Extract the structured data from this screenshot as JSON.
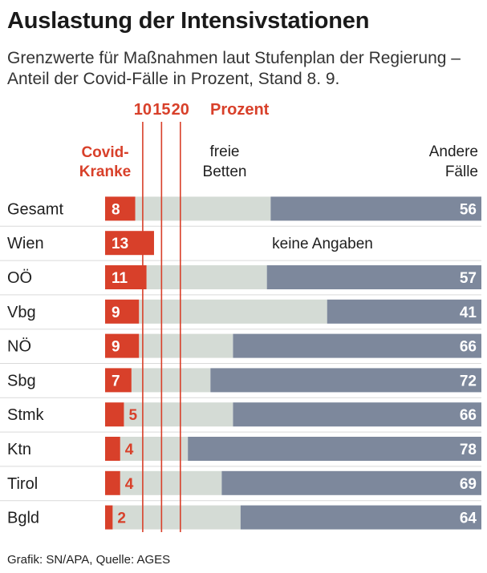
{
  "title": "Auslastung der Intensivstationen",
  "subtitle": "Grenzwerte für Maßnahmen laut Stufenplan der Regierung – Anteil der Covid-Fälle in Prozent, Stand 8. 9.",
  "footer": "Grafik: SN/APA, Quelle: AGES",
  "colors": {
    "covid": "#d8402a",
    "free": "#d4dbd5",
    "other": "#7d889c",
    "threshold": "#d8402a",
    "separator": "#d9d9d9"
  },
  "chart_data": {
    "type": "bar",
    "orientation": "horizontal-stacked",
    "unit": "Prozent",
    "xlim": [
      0,
      100
    ],
    "thresholds": [
      10,
      15,
      20
    ],
    "threshold_unit_label": "Prozent",
    "header_labels": {
      "covid": [
        "Covid-",
        "Kranke"
      ],
      "free": [
        "freie",
        "Betten"
      ],
      "other": [
        "Andere",
        "Fälle"
      ]
    },
    "no_data_label": "keine Angaben",
    "categories": [
      "Gesamt",
      "Wien",
      "OÖ",
      "Vbg",
      "NÖ",
      "Sbg",
      "Stmk",
      "Ktn",
      "Tirol",
      "Bgld"
    ],
    "series": [
      {
        "name": "Covid-Kranke",
        "values": [
          8,
          13,
          11,
          9,
          9,
          7,
          5,
          4,
          4,
          2
        ]
      },
      {
        "name": "freie Betten",
        "values": [
          36,
          null,
          32,
          50,
          25,
          21,
          29,
          18,
          27,
          34
        ]
      },
      {
        "name": "Andere Fälle",
        "values": [
          56,
          null,
          57,
          41,
          66,
          72,
          66,
          78,
          69,
          64
        ]
      }
    ]
  }
}
